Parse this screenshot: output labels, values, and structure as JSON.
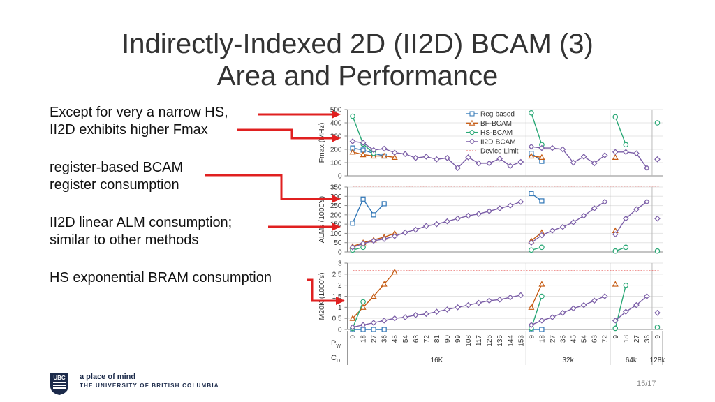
{
  "title": {
    "line1": "Indirectly-Indexed 2D (II2D) BCAM (3)",
    "line2": "Area and Performance"
  },
  "bullets": [
    {
      "line1": "Except for very a narrow HS,",
      "line2": "II2D exhibits higher Fmax"
    },
    {
      "line1": "register-based BCAM",
      "line2": "register consumption"
    },
    {
      "line1": "II2D linear ALM consumption;",
      "line2": "similar to other methods"
    },
    {
      "line1": "HS exponential BRAM consumption",
      "line2": ""
    }
  ],
  "footer": {
    "tagline": "a place of mind",
    "university": "THE UNIVERSITY OF BRITISH COLUMBIA",
    "logo_text": "UBC",
    "page": "15/17"
  },
  "colors": {
    "reg": "#2e75b6",
    "bf": "#c55a11",
    "hs": "#2aa876",
    "ii2d": "#7b5ea7",
    "limit": "#e0322e",
    "arrow": "#e02020"
  },
  "chart_data": {
    "type": "line",
    "x_axis": {
      "label_pw": "P",
      "label_pw_sub": "W",
      "label_cd": "C",
      "label_cd_sub": "D",
      "groups": [
        {
          "cd": "16K",
          "pw": [
            "9",
            "18",
            "27",
            "36",
            "45",
            "54",
            "63",
            "72",
            "81",
            "90",
            "99",
            "108",
            "117",
            "126",
            "135",
            "144",
            "153"
          ]
        },
        {
          "cd": "32k",
          "pw": [
            "9",
            "18",
            "27",
            "36",
            "45",
            "54",
            "63",
            "72"
          ]
        },
        {
          "cd": "64k",
          "pw": [
            "9",
            "18",
            "27",
            "36"
          ]
        },
        {
          "cd": "128k",
          "pw": [
            "9"
          ]
        }
      ]
    },
    "legend": {
      "reg": "Reg-based",
      "bf": "BF-BCAM",
      "hs": "HS-BCAM",
      "ii2d": "II2D-BCAM",
      "limit": "Device Limit"
    },
    "panels": [
      {
        "ylabel": "Fmax (MHz)",
        "ylim": [
          0,
          500
        ],
        "ticks": [
          "0",
          "100",
          "200",
          "300",
          "400",
          "500"
        ],
        "device_limit": null,
        "series": {
          "reg": [
            [
              210,
              195,
              170,
              150
            ],
            [
              170,
              110
            ],
            [],
            []
          ],
          "bf": [
            [
              180,
              160,
              150,
              150,
              140
            ],
            [
              150,
              140
            ],
            [
              140
            ],
            []
          ],
          "hs": [
            [
              450,
              240,
              170
            ],
            [
              475,
              235
            ],
            [
              445,
              235
            ],
            [
              400
            ]
          ],
          "ii2d": [
            [
              260,
              250,
              195,
              205,
              175,
              165,
              135,
              145,
              125,
              135,
              60,
              140,
              95,
              95,
              130,
              75,
              105
            ],
            [
              220,
              210,
              210,
              200,
              100,
              145,
              95,
              155
            ],
            [
              180,
              180,
              170,
              60
            ],
            [
              125
            ]
          ]
        }
      },
      {
        "ylabel": "ALMs (1000's)",
        "ylim": [
          0,
          350
        ],
        "ticks": [
          "0",
          "50",
          "100",
          "150",
          "200",
          "250",
          "300",
          "350"
        ],
        "device_limit": 355,
        "series": {
          "reg": [
            [
              155,
              285,
              200,
              260
            ],
            [
              315,
              275
            ],
            [],
            []
          ],
          "bf": [
            [
              30,
              50,
              65,
              80,
              100
            ],
            [
              60,
              105
            ],
            [
              115
            ],
            []
          ],
          "hs": [
            [
              10,
              25
            ],
            [
              10,
              25
            ],
            [
              5,
              25
            ],
            [
              5
            ]
          ],
          "ii2d": [
            [
              25,
              45,
              60,
              70,
              85,
              105,
              120,
              140,
              150,
              165,
              180,
              195,
              205,
              220,
              235,
              250,
              270
            ],
            [
              50,
              90,
              115,
              135,
              160,
              195,
              235,
              270
            ],
            [
              95,
              180,
              230,
              270
            ],
            [
              180
            ]
          ]
        }
      },
      {
        "ylabel": "M20K (1000's)",
        "ylim": [
          0,
          3
        ],
        "ticks": [
          "0",
          "0.5",
          "1",
          "1.5",
          "2",
          "2.5",
          "3"
        ],
        "device_limit": 2.65,
        "series": {
          "reg": [
            [
              0,
              0,
              0,
              0
            ],
            [
              0,
              0
            ],
            [],
            []
          ],
          "bf": [
            [
              0.5,
              1.0,
              1.5,
              2.05,
              2.6
            ],
            [
              1.0,
              2.05
            ],
            [
              2.05
            ],
            []
          ],
          "hs": [
            [
              0.05,
              1.25
            ],
            [
              0.05,
              1.5
            ],
            [
              0.05,
              2.0
            ],
            [
              0.1
            ]
          ],
          "ii2d": [
            [
              0.1,
              0.2,
              0.3,
              0.4,
              0.5,
              0.55,
              0.65,
              0.7,
              0.8,
              0.9,
              1.0,
              1.1,
              1.2,
              1.3,
              1.35,
              1.45,
              1.55
            ],
            [
              0.2,
              0.4,
              0.55,
              0.75,
              0.95,
              1.1,
              1.3,
              1.5
            ],
            [
              0.4,
              0.8,
              1.1,
              1.5
            ],
            [
              0.75
            ]
          ]
        }
      }
    ]
  }
}
